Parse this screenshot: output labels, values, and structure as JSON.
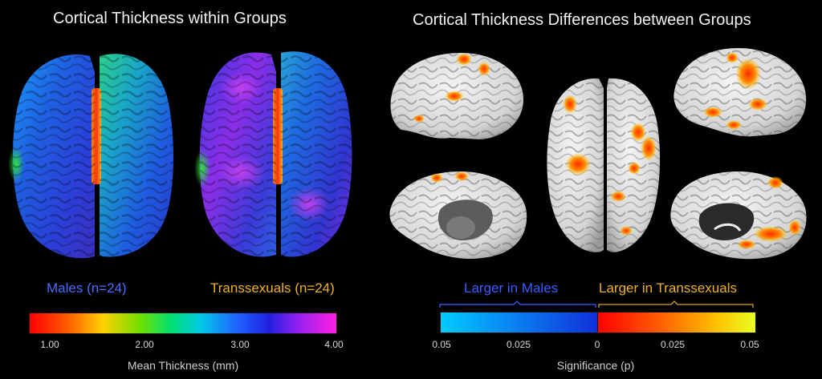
{
  "left_panel": {
    "title": "Cortical Thickness within Groups",
    "males_label": "Males (n=24)",
    "transsexuals_label": "Transsexuals (n=24)",
    "colorbar": {
      "ticks": [
        "1.00",
        "2.00",
        "3.00",
        "4.00"
      ],
      "label": "Mean Thickness (mm)"
    }
  },
  "right_panel": {
    "title": "Cortical Thickness Differences between Groups",
    "larger_males_label": "Larger in Males",
    "larger_transsexuals_label": "Larger in Transsexuals",
    "colorbar": {
      "ticks": [
        "0.05",
        "0.025",
        "0",
        "0.025",
        "0.05"
      ],
      "label": "Significance (p)"
    }
  },
  "colors": {
    "males_text": "#4a6cff",
    "transsexuals_text": "#f0b020"
  }
}
